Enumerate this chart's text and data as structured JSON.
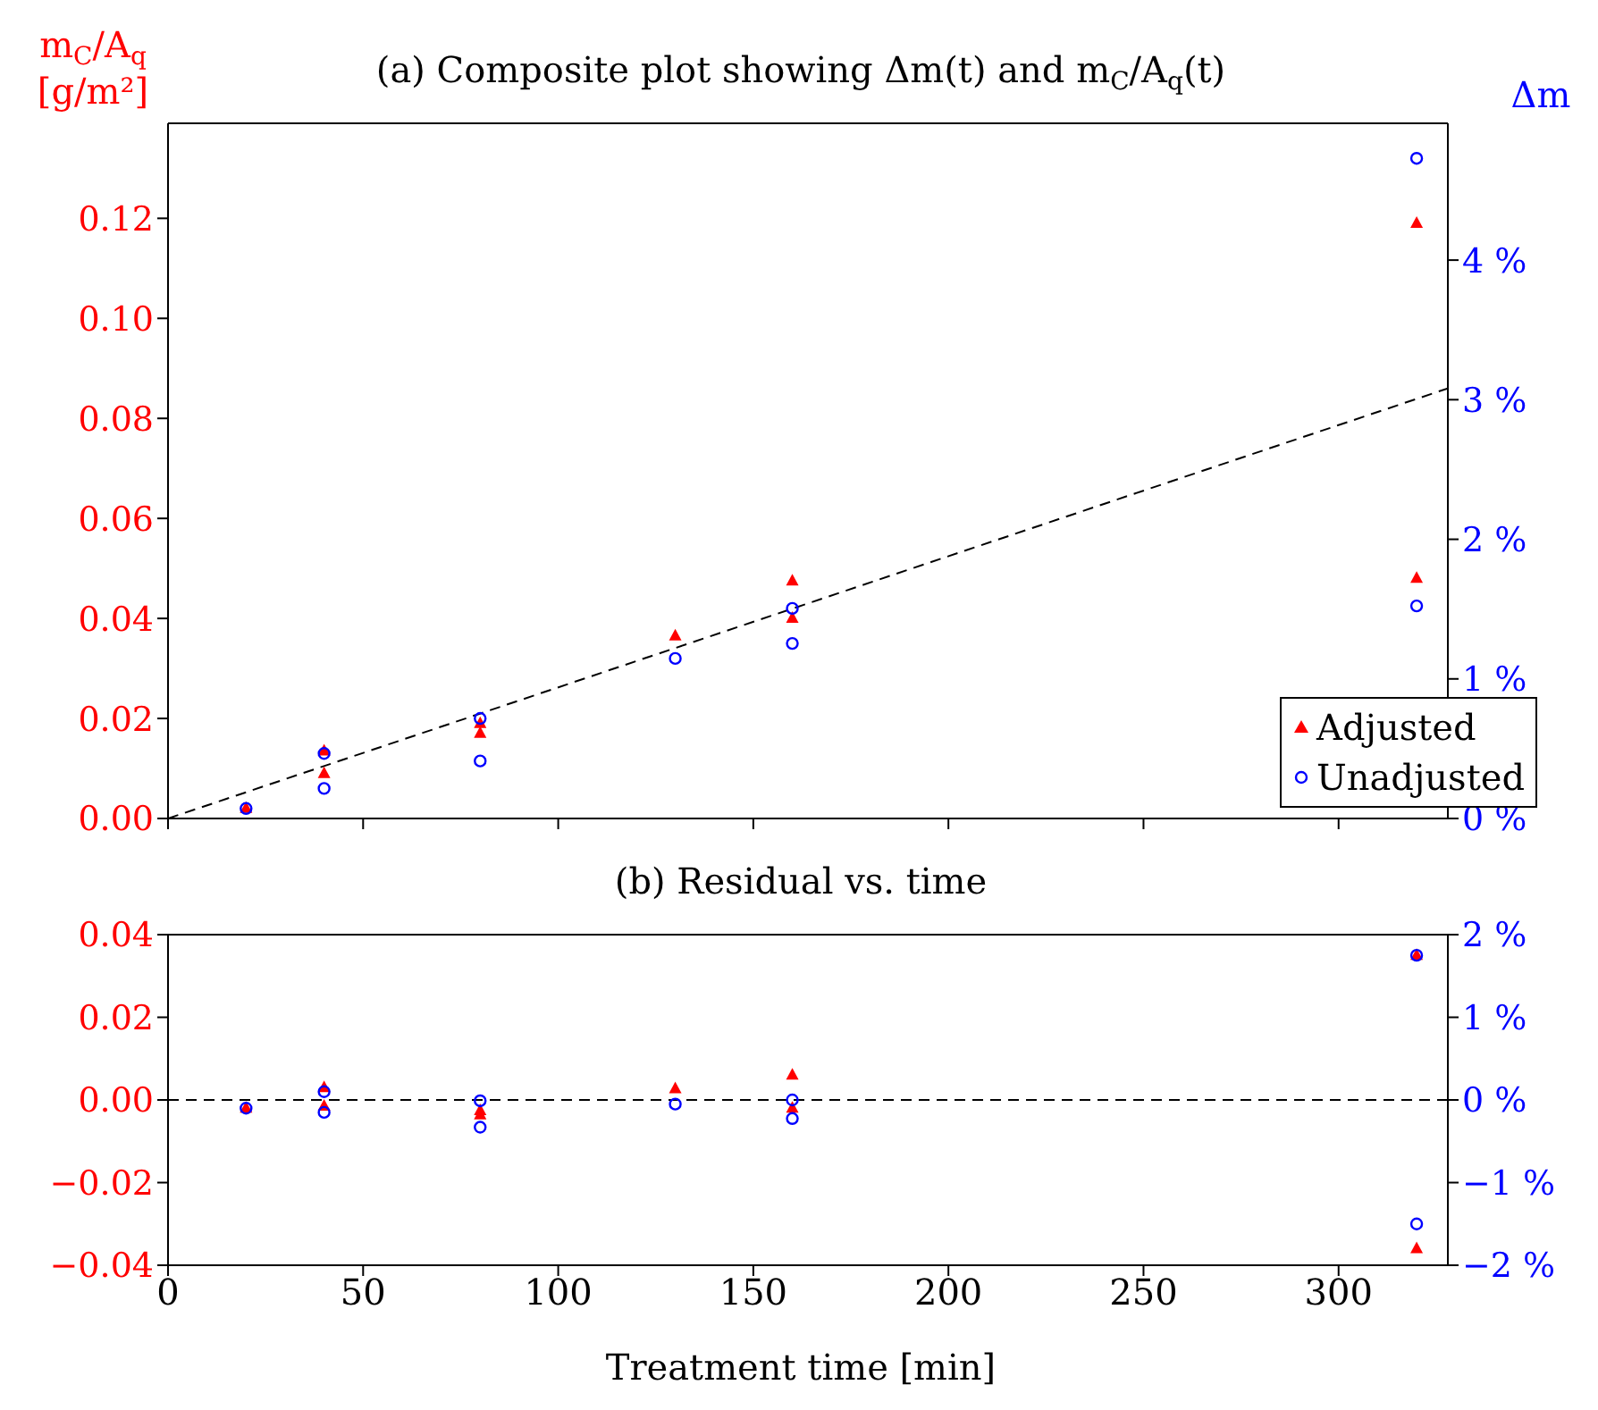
{
  "chart_data": [
    {
      "type": "scatter",
      "title": "(a) Composite plot showing Δm(t) and m$_{C}$/A$_{q}$(t)",
      "ylabel": "m$_{C}$/A$_{q}$ [g/m²]",
      "y2label": "Δm",
      "xlim": [
        0,
        328
      ],
      "xticks": [
        0,
        50,
        100,
        150,
        200,
        250,
        300
      ],
      "ylim": [
        0,
        0.139
      ],
      "yticks": [
        {
          "value": 0,
          "label": "0.00"
        },
        {
          "value": 0.02,
          "label": "0.02"
        },
        {
          "value": 0.04,
          "label": "0.04"
        },
        {
          "value": 0.06,
          "label": "0.06"
        },
        {
          "value": 0.08,
          "label": "0.08"
        },
        {
          "value": 0.1,
          "label": "0.10"
        },
        {
          "value": 0.12,
          "label": "0.12"
        }
      ],
      "y2lim": [
        0,
        4.98
      ],
      "y2ticks": [
        {
          "value": 0,
          "label": "0 %"
        },
        {
          "value": 1,
          "label": "1 %"
        },
        {
          "value": 2,
          "label": "2 %"
        },
        {
          "value": 3,
          "label": "3 %"
        },
        {
          "value": 4,
          "label": "4 %"
        }
      ],
      "tick_labels": "y",
      "grid": false,
      "legend": "bottom right",
      "series": [
        {
          "name": "Adjusted",
          "marker": "triangle",
          "color": "#ff0000",
          "x": [
            20,
            40,
            40,
            80,
            80,
            130,
            160,
            160,
            320,
            320
          ],
          "values": [
            0.002,
            0.0135,
            0.009,
            0.019,
            0.017,
            0.0365,
            0.0475,
            0.04,
            0.119,
            0.048
          ]
        },
        {
          "name": "Unadjusted",
          "marker": "circle",
          "color": "#0000ff",
          "x": [
            20,
            40,
            40,
            80,
            80,
            130,
            160,
            160,
            320,
            320
          ],
          "values": [
            0.002,
            0.013,
            0.006,
            0.02,
            0.0115,
            0.032,
            0.042,
            0.035,
            0.132,
            0.0425
          ]
        },
        {
          "type": "line",
          "marker": "none",
          "line_style": "dashed",
          "color": "#000000",
          "x": [
            0,
            328
          ],
          "values": [
            0,
            0.086
          ]
        }
      ]
    },
    {
      "type": "scatter",
      "title": "(b) Residual vs. time",
      "xlabel": "Treatment time [min]",
      "xlim": [
        0,
        328
      ],
      "xticks": [
        0,
        50,
        100,
        150,
        200,
        250,
        300
      ],
      "ylim": [
        -0.04,
        0.04
      ],
      "yticks": [
        {
          "value": -0.04,
          "label": "−0.04"
        },
        {
          "value": -0.02,
          "label": "−0.02"
        },
        {
          "value": 0,
          "label": "0.00"
        },
        {
          "value": 0.02,
          "label": "0.02"
        },
        {
          "value": 0.04,
          "label": "0.04"
        }
      ],
      "y2lim": [
        -2,
        2
      ],
      "y2ticks": [
        {
          "value": -2,
          "label": "−2 %"
        },
        {
          "value": -1,
          "label": "−1 %"
        },
        {
          "value": 0,
          "label": "0 %"
        },
        {
          "value": 1,
          "label": "1 %"
        },
        {
          "value": 2,
          "label": "2 %"
        }
      ],
      "grid": false,
      "legend": false,
      "ref_lines": [
        {
          "axis": "y",
          "value": 0,
          "color": "#000000",
          "line_style": "dashed"
        }
      ],
      "series": [
        {
          "marker": "triangle",
          "color": "#ff0000",
          "x": [
            20,
            40,
            40,
            80,
            80,
            130,
            160,
            160,
            320,
            320
          ],
          "values": [
            -0.002,
            0.003,
            -0.0015,
            -0.0026,
            -0.0036,
            0.0027,
            0.006,
            -0.002,
            0.035,
            -0.036
          ]
        },
        {
          "marker": "circle",
          "color": "#0000ff",
          "x": [
            20,
            40,
            40,
            80,
            80,
            130,
            160,
            160,
            320,
            320
          ],
          "values": [
            -0.002,
            0.002,
            -0.003,
            -0.0002,
            -0.0066,
            -0.001,
            0,
            -0.0045,
            0.035,
            -0.03
          ]
        }
      ]
    }
  ]
}
